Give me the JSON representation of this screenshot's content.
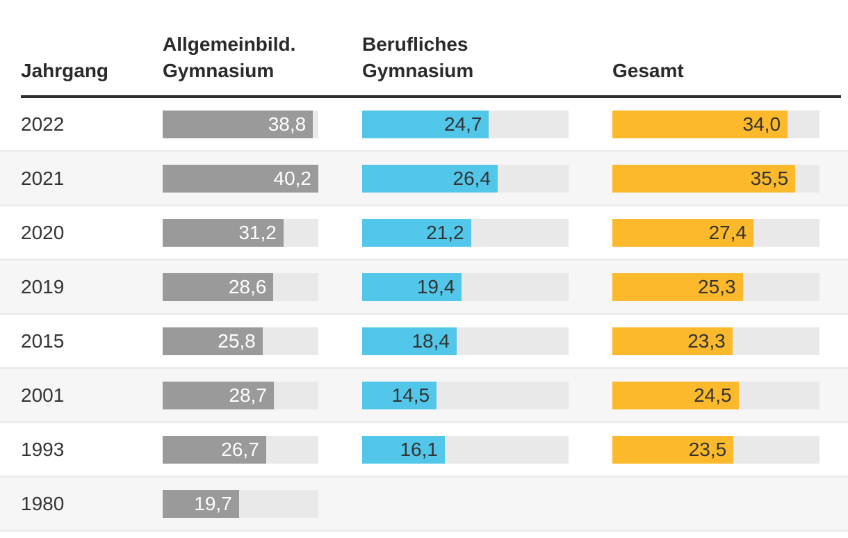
{
  "chart_data": {
    "type": "bar",
    "title": "",
    "orientation": "horizontal",
    "categories": [
      "2022",
      "2021",
      "2020",
      "2019",
      "2015",
      "2001",
      "1993",
      "1980"
    ],
    "series": [
      {
        "name": "Allgemeinbild. Gymnasium",
        "color": "#9a9a9a",
        "label_color": "#ffffff",
        "values": [
          38.8,
          40.2,
          31.2,
          28.6,
          25.8,
          28.7,
          26.7,
          19.7
        ]
      },
      {
        "name": "Berufliches Gymnasium",
        "color": "#52c7ea",
        "label_color": "#333333",
        "values": [
          24.7,
          26.4,
          21.2,
          19.4,
          18.4,
          14.5,
          16.1,
          null
        ]
      },
      {
        "name": "Gesamt",
        "color": "#fcb92c",
        "label_color": "#333333",
        "values": [
          34.0,
          35.5,
          27.4,
          25.3,
          23.3,
          24.5,
          23.5,
          null
        ]
      }
    ],
    "xlim": [
      0,
      40.2
    ],
    "xlabel": "",
    "ylabel": "Jahrgang",
    "grid": "off",
    "legend": "column-headers",
    "value_decimal_separator": ","
  },
  "header": {
    "year": "Jahrgang",
    "col1": [
      "Allgemeinbild.",
      "Gymnasium"
    ],
    "col2": [
      "Berufliches",
      "Gymnasium"
    ],
    "col3": [
      "Gesamt"
    ]
  },
  "colors": {
    "track": "#e9e9e9",
    "row_alt": "#f6f6f6",
    "row_separator": "#ececec",
    "header_rule": "#2e2e2e",
    "text_dark": "#333333"
  }
}
